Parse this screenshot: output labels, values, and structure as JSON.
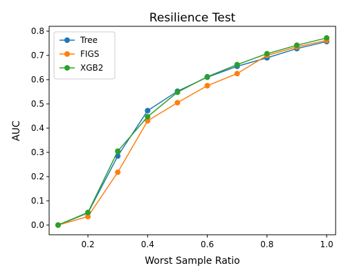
{
  "chart_data": {
    "type": "line",
    "title": "Resilience Test",
    "xlabel": "Worst Sample Ratio",
    "ylabel": "AUC",
    "x": [
      0.1,
      0.2,
      0.3,
      0.4,
      0.5,
      0.6,
      0.7,
      0.8,
      0.9,
      1.0
    ],
    "xlim": [
      0.07,
      1.03
    ],
    "ylim": [
      -0.04,
      0.82
    ],
    "xticks": [
      0.2,
      0.4,
      0.6,
      0.8,
      1.0
    ],
    "xtick_labels": [
      "0.2",
      "0.4",
      "0.6",
      "0.8",
      "1.0"
    ],
    "yticks": [
      0.0,
      0.1,
      0.2,
      0.3,
      0.4,
      0.5,
      0.6,
      0.7,
      0.8
    ],
    "ytick_labels": [
      "0.0",
      "0.1",
      "0.2",
      "0.3",
      "0.4",
      "0.5",
      "0.6",
      "0.7",
      "0.8"
    ],
    "grid": false,
    "legend_position": "top-left",
    "series": [
      {
        "name": "Tree",
        "color": "#1f77b4",
        "values": [
          0.0,
          0.05,
          0.285,
          0.472,
          0.552,
          0.61,
          0.655,
          0.69,
          0.728,
          0.757
        ]
      },
      {
        "name": "FIGS",
        "color": "#ff7f0e",
        "values": [
          0.0,
          0.035,
          0.218,
          0.43,
          0.505,
          0.575,
          0.625,
          0.7,
          0.735,
          0.762
        ]
      },
      {
        "name": "XGB2",
        "color": "#2ca02c",
        "values": [
          0.0,
          0.052,
          0.305,
          0.447,
          0.548,
          0.612,
          0.662,
          0.707,
          0.742,
          0.772
        ]
      }
    ]
  }
}
